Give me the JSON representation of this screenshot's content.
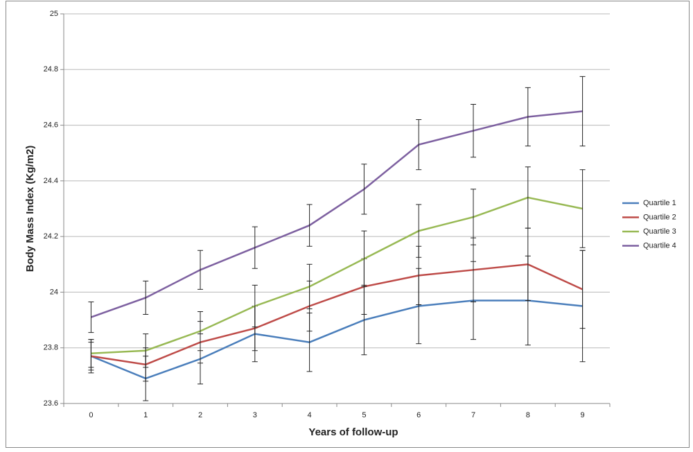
{
  "chart_data": {
    "type": "line",
    "x_label": "Years of follow-up",
    "y_label": "Body Mass Index (Kg/m2)",
    "categories": [
      "0",
      "1",
      "2",
      "3",
      "4",
      "5",
      "6",
      "7",
      "8",
      "9"
    ],
    "ylim": [
      23.6,
      25
    ],
    "yticks": [
      23.6,
      23.8,
      24,
      24.2,
      24.4,
      24.6,
      24.8,
      25
    ],
    "grid": true,
    "legend": "right",
    "series": [
      {
        "name": "Quartile 1",
        "color": "#4a7ebb",
        "values": [
          23.77,
          23.69,
          23.76,
          23.85,
          23.82,
          23.9,
          23.95,
          23.97,
          23.97,
          23.95
        ],
        "errors": [
          0.06,
          0.08,
          0.09,
          0.1,
          0.105,
          0.125,
          0.135,
          0.14,
          0.16,
          0.2
        ]
      },
      {
        "name": "Quartile 2",
        "color": "#be4b48",
        "values": [
          23.77,
          23.74,
          23.82,
          23.87,
          23.95,
          24.02,
          24.06,
          24.08,
          24.1,
          24.01
        ],
        "errors": [
          0.05,
          0.06,
          0.075,
          0.08,
          0.09,
          0.1,
          0.105,
          0.115,
          0.13,
          0.14
        ]
      },
      {
        "name": "Quartile 3",
        "color": "#98b954",
        "values": [
          23.78,
          23.79,
          23.86,
          23.95,
          24.02,
          24.12,
          24.22,
          24.27,
          24.34,
          24.3
        ],
        "errors": [
          0.05,
          0.06,
          0.07,
          0.075,
          0.08,
          0.1,
          0.095,
          0.1,
          0.11,
          0.14
        ]
      },
      {
        "name": "Quartile 4",
        "color": "#7d60a0",
        "values": [
          23.91,
          23.98,
          24.08,
          24.16,
          24.24,
          24.37,
          24.53,
          24.58,
          24.63,
          24.65
        ],
        "errors": [
          0.055,
          0.06,
          0.07,
          0.075,
          0.075,
          0.09,
          0.09,
          0.095,
          0.105,
          0.125
        ]
      }
    ]
  }
}
